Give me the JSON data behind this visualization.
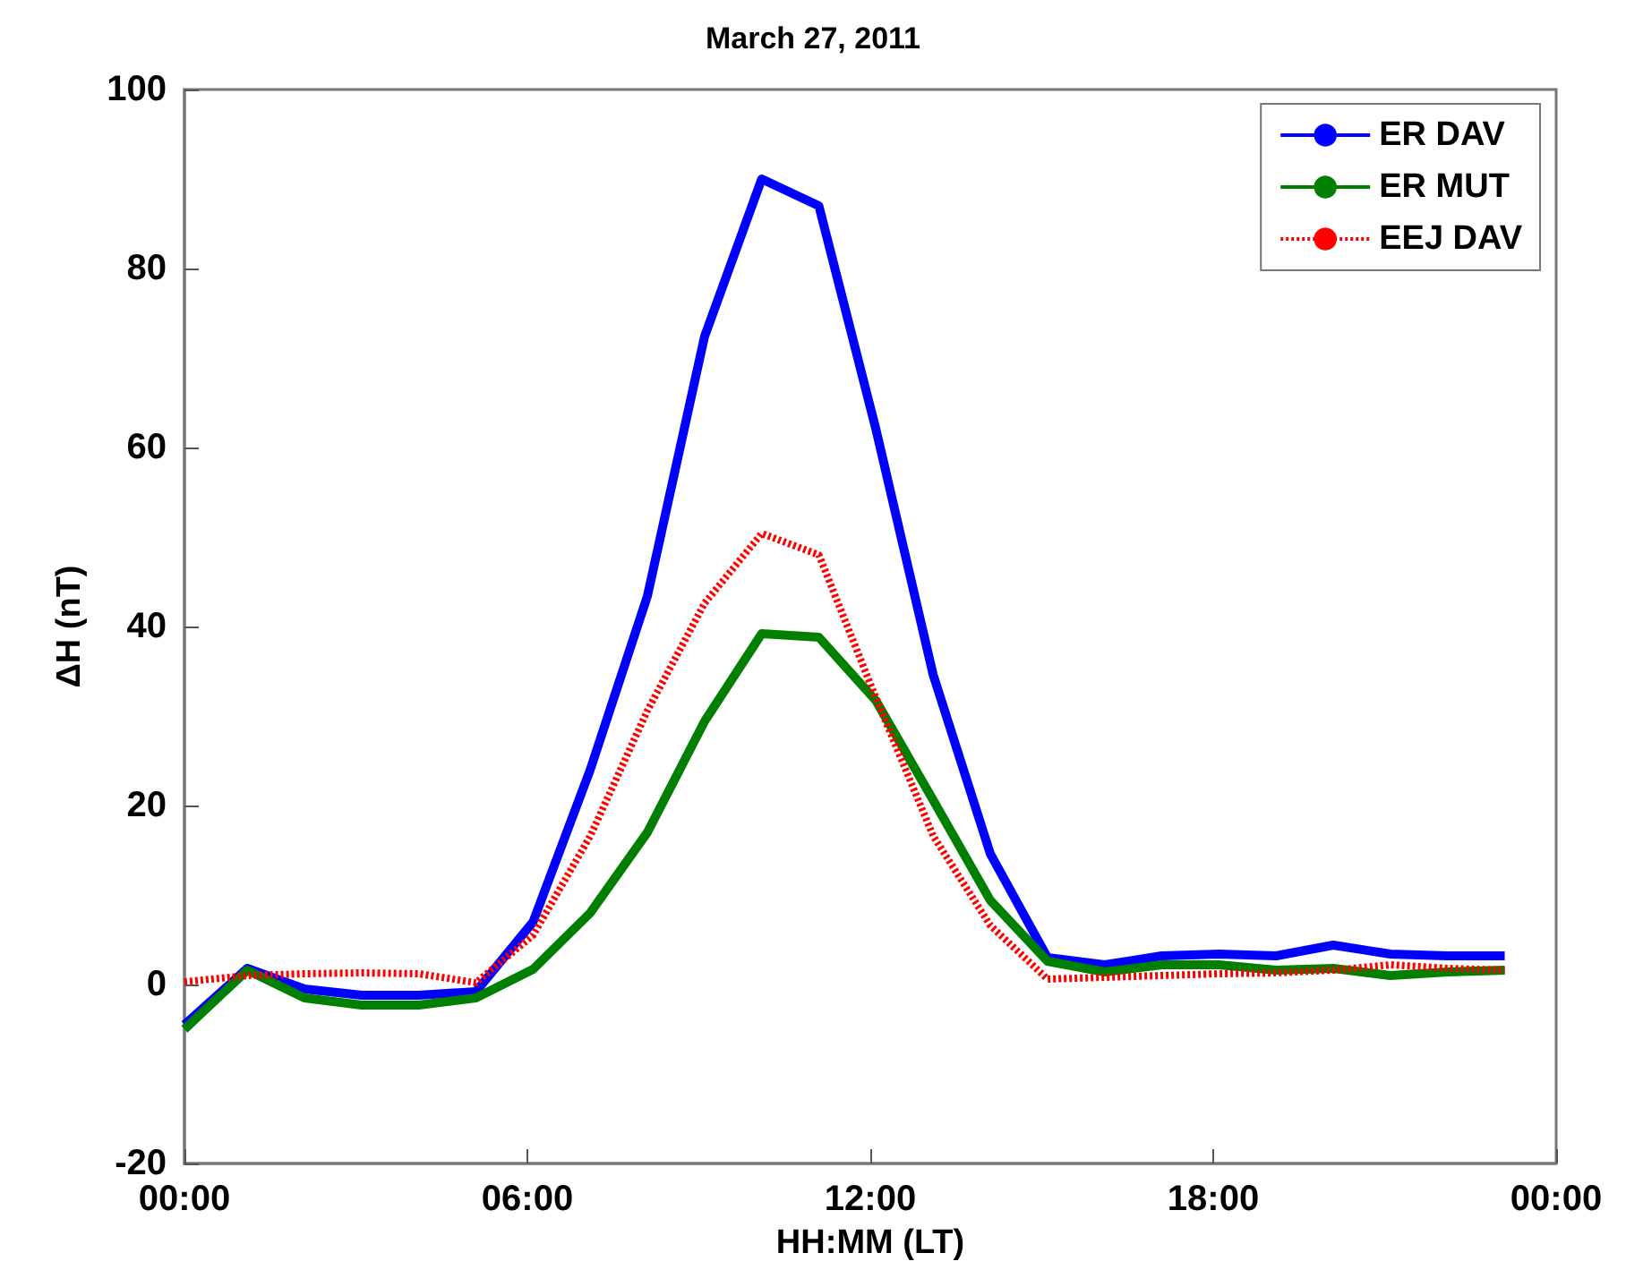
{
  "chart_data": {
    "type": "line",
    "title": "March 27, 2011",
    "xlabel": "HH:MM (LT)",
    "ylabel": "ΔH (nT)",
    "x": [
      0,
      1.1,
      2.1,
      3.1,
      4.1,
      5.1,
      6.1,
      7.1,
      8.1,
      9.1,
      10.1,
      11.1,
      12.1,
      13.1,
      14.1,
      15.1,
      16.1,
      17.1,
      18.1,
      19.1,
      20.1,
      21.1,
      22.1,
      23.1
    ],
    "series": [
      {
        "name": "ER DAV",
        "color": "#0000ff",
        "line_style": "solid",
        "values": [
          -4.5,
          1.8,
          -0.5,
          -1.2,
          -1.2,
          -0.8,
          7,
          24,
          43.4,
          72.4,
          90,
          87,
          62,
          34.6,
          14.6,
          3,
          2.2,
          3.2,
          3.4,
          3.2,
          4.4,
          3.4,
          3.2,
          3.2
        ]
      },
      {
        "name": "ER MUT",
        "color": "#007f00",
        "line_style": "solid",
        "values": [
          -5,
          1.6,
          -1.5,
          -2.3,
          -2.3,
          -1.5,
          1.7,
          8,
          17,
          29.4,
          39.2,
          38.8,
          31.7,
          20.6,
          9.4,
          2.6,
          1.4,
          2.2,
          2.2,
          1.6,
          1.8,
          1,
          1.4,
          1.6
        ]
      },
      {
        "name": "EEJ DAV",
        "color": "#ff0000",
        "line_style": "dotted",
        "values": [
          0.3,
          1,
          1.2,
          1.3,
          1.2,
          0.2,
          5.5,
          16.6,
          30.6,
          42.6,
          50.4,
          48,
          32,
          16.6,
          6.6,
          0.6,
          0.8,
          1,
          1.2,
          1.3,
          1.6,
          2.2,
          1.8,
          1.6
        ]
      }
    ],
    "xlim": [
      0,
      24
    ],
    "xticks": [
      {
        "value": 0,
        "label": "00:00"
      },
      {
        "value": 6,
        "label": "06:00"
      },
      {
        "value": 12,
        "label": "12:00"
      },
      {
        "value": 18,
        "label": "18:00"
      },
      {
        "value": 24,
        "label": "00:00"
      }
    ],
    "ylim": [
      -20,
      100
    ],
    "yticks": [
      -20,
      0,
      20,
      40,
      60,
      80,
      100
    ],
    "grid": false,
    "legend": "top right",
    "marker": "none"
  }
}
